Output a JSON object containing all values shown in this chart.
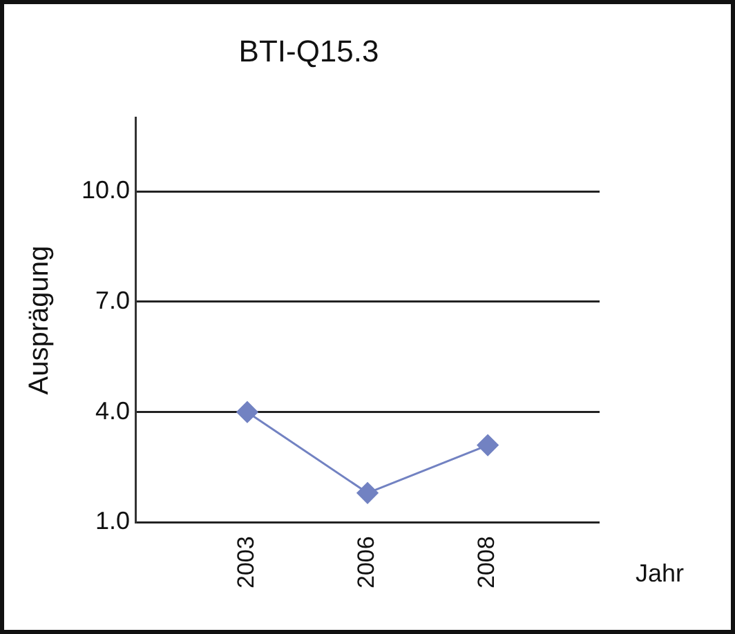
{
  "chart_data": {
    "type": "line",
    "title": "BTI-Q15.3",
    "xlabel": "Jahr",
    "ylabel": "Ausprägung",
    "categories": [
      "2003",
      "2006",
      "2008"
    ],
    "series": [
      {
        "color": "#7282c2",
        "values": [
          4.0,
          1.8,
          3.1
        ]
      }
    ],
    "ylim": [
      1,
      12
    ],
    "yticks": [
      {
        "value": 1,
        "label": "1.0"
      },
      {
        "value": 4,
        "label": "4.0"
      },
      {
        "value": 7,
        "label": "7.0"
      },
      {
        "value": 10,
        "label": "10.0"
      }
    ],
    "grid": "y",
    "legend": false,
    "marker": "diamond",
    "line_style": "solid"
  }
}
